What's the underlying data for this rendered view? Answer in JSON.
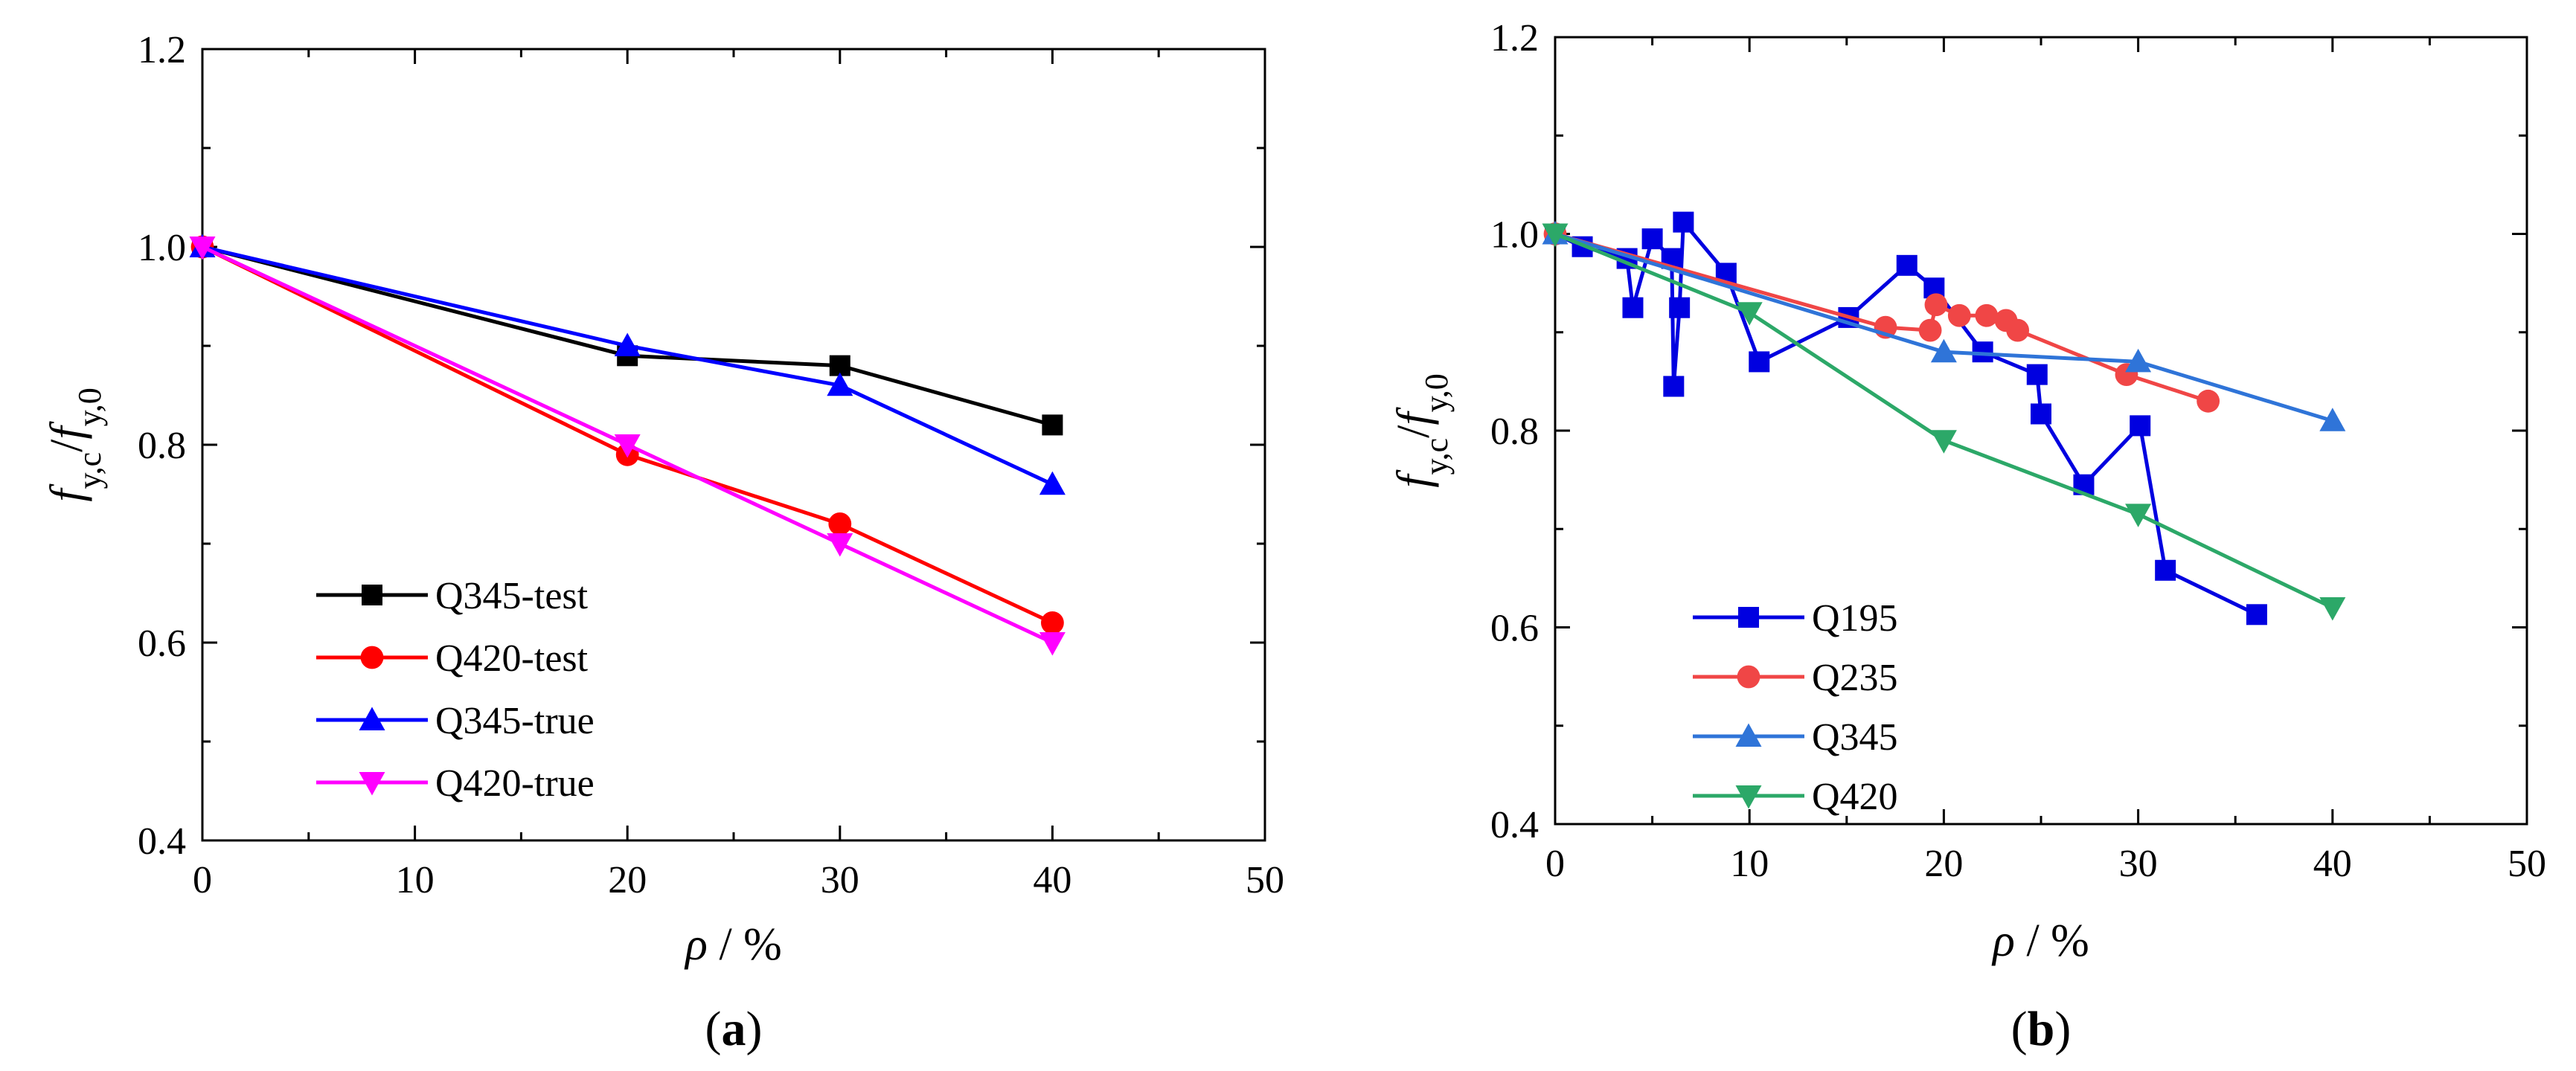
{
  "chart_data": [
    {
      "panel": "(a)",
      "panel_label_open": "(",
      "panel_label_letter": "a",
      "panel_label_close": ")",
      "type": "line",
      "title": "",
      "xlabel": "ρ / %",
      "xlabel_symbol": "ρ",
      "xlabel_unit": " / %",
      "ylabel": "f_y,c/f_y,0",
      "ylabel_parts": {
        "f1": "f",
        "sub1": "y,c",
        "slash": "/",
        "f2": "f",
        "sub2": "y,0"
      },
      "xlim": [
        0,
        50
      ],
      "ylim": [
        0.4,
        1.2
      ],
      "xticks": [
        "0",
        "10",
        "20",
        "30",
        "40",
        "50"
      ],
      "yticks": [
        "0.4",
        "0.6",
        "0.8",
        "1.0",
        "1.2"
      ],
      "legend_position": "lower-left",
      "series": [
        {
          "name": "Q345-test",
          "color": "#000000",
          "marker": "square",
          "x": [
            0,
            20,
            30,
            40
          ],
          "y": [
            1.0,
            0.89,
            0.88,
            0.82
          ]
        },
        {
          "name": "Q420-test",
          "color": "#ff0000",
          "marker": "circle",
          "x": [
            0,
            20,
            30,
            40
          ],
          "y": [
            1.0,
            0.79,
            0.72,
            0.62
          ]
        },
        {
          "name": "Q345-true",
          "color": "#0000ff",
          "marker": "triangle-up",
          "x": [
            0,
            20,
            30,
            40
          ],
          "y": [
            1.0,
            0.9,
            0.86,
            0.76
          ]
        },
        {
          "name": "Q420-true",
          "color": "#ff00ff",
          "marker": "triangle-down",
          "x": [
            0,
            20,
            30,
            40
          ],
          "y": [
            1.0,
            0.8,
            0.7,
            0.6
          ]
        }
      ]
    },
    {
      "panel": "(b)",
      "panel_label_open": "(",
      "panel_label_letter": "b",
      "panel_label_close": ")",
      "type": "line",
      "title": "",
      "xlabel": "ρ / %",
      "xlabel_symbol": "ρ",
      "xlabel_unit": " / %",
      "ylabel": "f_y,c/f_y,0",
      "ylabel_parts": {
        "f1": "f",
        "sub1": "y,c",
        "slash": "/",
        "f2": "f",
        "sub2": "y,0"
      },
      "xlim": [
        0,
        50
      ],
      "ylim": [
        0.4,
        1.2
      ],
      "xticks": [
        "0",
        "10",
        "20",
        "30",
        "40",
        "50"
      ],
      "yticks": [
        "0.4",
        "0.6",
        "0.8",
        "1.0",
        "1.2"
      ],
      "legend_position": "lower-left",
      "series": [
        {
          "name": "Q195",
          "color": "#0000e0",
          "marker": "square",
          "x": [
            0,
            1.4,
            3.7,
            4.0,
            5.0,
            6.0,
            6.1,
            6.4,
            6.6,
            8.8,
            10.5,
            15.1,
            18.1,
            19.5,
            22.0,
            24.8,
            25.0,
            27.2,
            30.1,
            31.4,
            36.1
          ],
          "y": [
            1.0,
            0.987,
            0.975,
            0.925,
            0.995,
            0.975,
            0.845,
            0.925,
            1.012,
            0.96,
            0.87,
            0.915,
            0.968,
            0.945,
            0.88,
            0.857,
            0.817,
            0.745,
            0.805,
            0.658,
            0.613
          ]
        },
        {
          "name": "Q235",
          "color": "#f04646",
          "marker": "circle",
          "x": [
            0,
            17.0,
            19.3,
            19.6,
            20.8,
            22.2,
            23.2,
            23.8,
            29.4,
            33.6
          ],
          "y": [
            1.0,
            0.905,
            0.902,
            0.928,
            0.917,
            0.917,
            0.912,
            0.902,
            0.857,
            0.83
          ]
        },
        {
          "name": "Q345",
          "color": "#2f74d8",
          "marker": "triangle-up",
          "x": [
            0,
            20,
            30,
            40
          ],
          "y": [
            1.0,
            0.88,
            0.87,
            0.81
          ]
        },
        {
          "name": "Q420",
          "color": "#2ca868",
          "marker": "triangle-down",
          "x": [
            0,
            10,
            20,
            30,
            40
          ],
          "y": [
            1.0,
            0.92,
            0.79,
            0.715,
            0.62
          ]
        }
      ]
    }
  ]
}
